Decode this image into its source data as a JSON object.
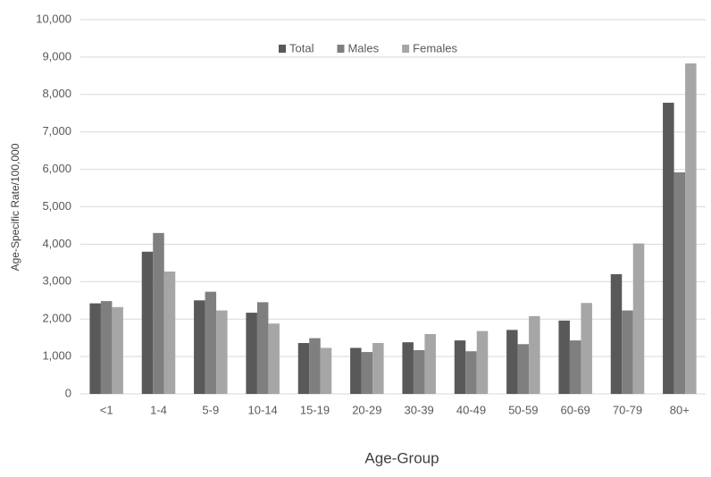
{
  "chart_data": {
    "type": "bar",
    "categories": [
      "<1",
      "1-4",
      "5-9",
      "10-14",
      "15-19",
      "20-29",
      "30-39",
      "40-49",
      "50-59",
      "60-69",
      "70-79",
      "80+"
    ],
    "series": [
      {
        "name": "Total",
        "color": "#595959",
        "values": [
          2420,
          3800,
          2500,
          2170,
          1360,
          1230,
          1380,
          1430,
          1710,
          1960,
          3200,
          7780
        ]
      },
      {
        "name": "Males",
        "color": "#7f7f7f",
        "values": [
          2480,
          4300,
          2730,
          2450,
          1490,
          1120,
          1170,
          1140,
          1330,
          1430,
          2230,
          5920
        ]
      },
      {
        "name": "Females",
        "color": "#a6a6a6",
        "values": [
          2320,
          3270,
          2230,
          1880,
          1230,
          1360,
          1600,
          1680,
          2080,
          2430,
          4020,
          8830
        ]
      }
    ],
    "x_label": "Age-Group",
    "y_label": "Age-Specific Rate/100,000",
    "ylim": [
      0,
      10000
    ],
    "yticks": [
      0,
      {
        "value": 1000,
        "label": "1,000"
      },
      {
        "value": 2000,
        "label": "2,000"
      },
      {
        "value": 3000,
        "label": "3,000"
      },
      {
        "value": 4000,
        "label": "4,000"
      },
      {
        "value": 5000,
        "label": "5,000"
      },
      {
        "value": 6000,
        "label": "6,000"
      },
      {
        "value": 7000,
        "label": "7,000"
      },
      {
        "value": 8000,
        "label": "8,000"
      },
      {
        "value": 9000,
        "label": "9,000"
      },
      {
        "value": 10000,
        "label": "10,000"
      }
    ],
    "grid": true,
    "legend": "top"
  }
}
